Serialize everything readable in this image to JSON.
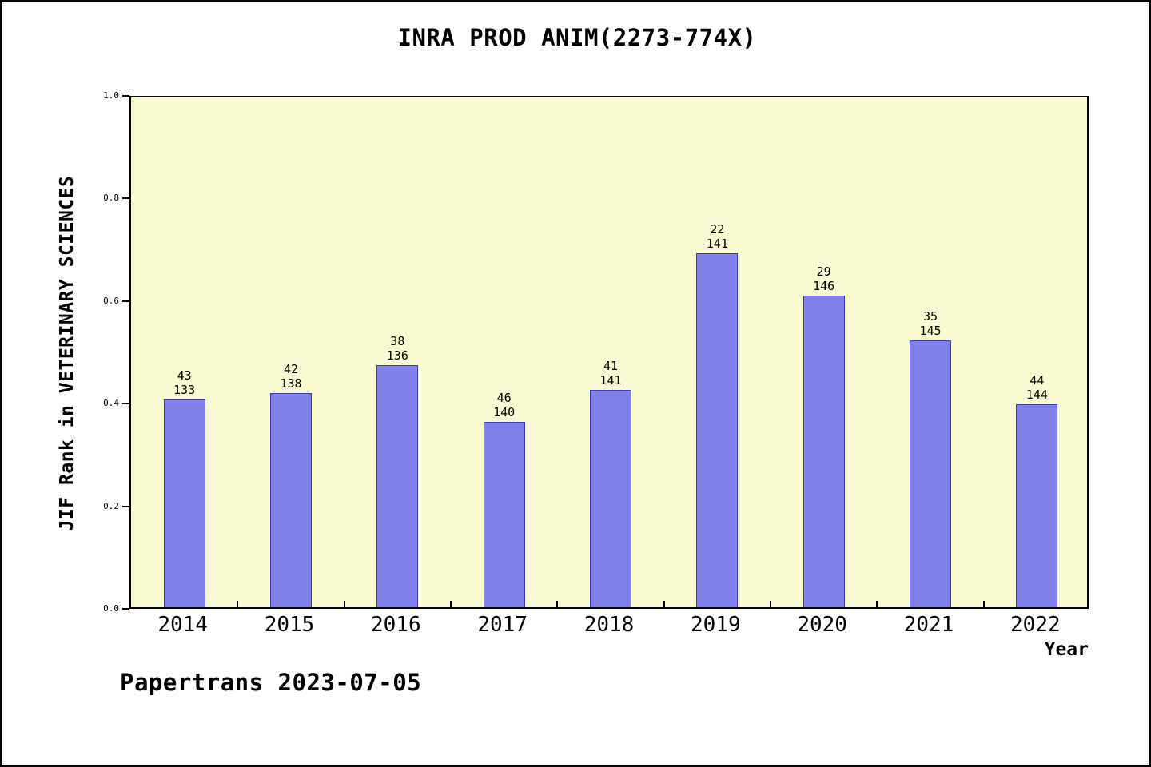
{
  "footer": "Papertrans 2023-07-05",
  "chart_data": {
    "type": "bar",
    "title": "INRA PROD ANIM(2273-774X)",
    "xlabel": "Year",
    "ylabel": "JIF Rank in VETERINARY SCIENCES",
    "categories": [
      "2014",
      "2015",
      "2016",
      "2017",
      "2018",
      "2019",
      "2020",
      "2021",
      "2022"
    ],
    "values": [
      0.405,
      0.418,
      0.472,
      0.362,
      0.424,
      0.69,
      0.608,
      0.52,
      0.396
    ],
    "ranks": [
      43,
      42,
      38,
      46,
      41,
      22,
      29,
      35,
      44
    ],
    "totals": [
      133,
      138,
      136,
      140,
      141,
      141,
      146,
      145,
      144
    ],
    "bar_labels": [
      "43/133",
      "42/138",
      "38/136",
      "46/140",
      "41/141",
      "22/141",
      "29/146",
      "35/145",
      "44/144"
    ],
    "ylim": [
      0,
      1
    ],
    "yticks": [
      0.0,
      0.2,
      0.4,
      0.6,
      0.8,
      1.0
    ],
    "grid": false,
    "legend": false,
    "colors": {
      "bar_fill": "#8181e9",
      "bar_edge": "#3c3cb4",
      "plot_bg": "#fafad2",
      "page_bg": "#ffffff",
      "axis": "#000000"
    }
  }
}
